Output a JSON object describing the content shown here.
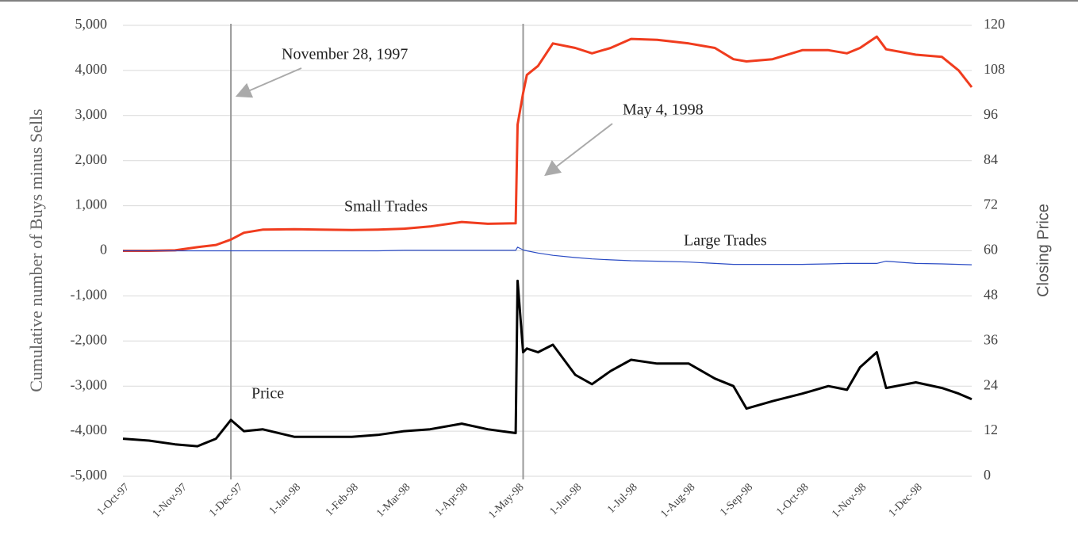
{
  "chart_data": {
    "type": "line",
    "ylabel": "Cumulative  number of  Buys minus Sells",
    "y2label": "Closing Price",
    "x": [
      "1997-10-01",
      "1997-10-15",
      "1997-10-29",
      "1997-11-10",
      "1997-11-20",
      "1997-11-28",
      "1997-12-05",
      "1997-12-15",
      "1998-01-01",
      "1998-01-15",
      "1998-02-01",
      "1998-02-15",
      "1998-03-01",
      "1998-03-15",
      "1998-04-01",
      "1998-04-15",
      "1998-04-30",
      "1998-05-01",
      "1998-05-04",
      "1998-05-06",
      "1998-05-12",
      "1998-05-20",
      "1998-06-01",
      "1998-06-10",
      "1998-06-20",
      "1998-07-01",
      "1998-07-15",
      "1998-08-01",
      "1998-08-15",
      "1998-08-25",
      "1998-09-01",
      "1998-09-15",
      "1998-10-01",
      "1998-10-15",
      "1998-10-25",
      "1998-11-01",
      "1998-11-10",
      "1998-11-15",
      "1998-12-01",
      "1998-12-15",
      "1998-12-24",
      "1998-12-31"
    ],
    "series": [
      {
        "name": "Small Trades",
        "color": "#f03c1e",
        "axis": "y",
        "values": [
          0,
          0,
          10,
          80,
          130,
          250,
          400,
          470,
          480,
          470,
          460,
          470,
          490,
          540,
          640,
          600,
          610,
          2800,
          3500,
          3900,
          4100,
          4600,
          4500,
          4380,
          4500,
          4700,
          4680,
          4600,
          4500,
          4250,
          4200,
          4250,
          4450,
          4450,
          4380,
          4500,
          4750,
          4470,
          4350,
          4300,
          4000,
          3630
        ]
      },
      {
        "name": "Large Trades",
        "color": "#2a4bc4",
        "axis": "y",
        "values": [
          0,
          0,
          0,
          0,
          0,
          0,
          0,
          0,
          0,
          0,
          0,
          0,
          10,
          10,
          10,
          10,
          10,
          80,
          20,
          0,
          -50,
          -100,
          -150,
          -180,
          -200,
          -220,
          -230,
          -250,
          -280,
          -300,
          -300,
          -300,
          -300,
          -290,
          -280,
          -280,
          -280,
          -230,
          -280,
          -290,
          -300,
          -310
        ]
      },
      {
        "name": "Price",
        "color": "#000000",
        "axis": "y2",
        "values": [
          10,
          9.5,
          8.5,
          8,
          10,
          15,
          12,
          12.5,
          10.5,
          10.5,
          10.5,
          11,
          12,
          12.5,
          14,
          12.5,
          11.5,
          52,
          33,
          34,
          33,
          35,
          27,
          24.5,
          28,
          31,
          30,
          30,
          26,
          24,
          18,
          20,
          22,
          24,
          23,
          29,
          33,
          23.5,
          25,
          23.5,
          22,
          20.5
        ]
      }
    ],
    "xlim": [
      "1997-10-01",
      "1998-12-31"
    ],
    "xticks": [
      {
        "value": "1997-10-01",
        "label": "1-Oct-97"
      },
      {
        "value": "1997-11-01",
        "label": "1-Nov-97"
      },
      {
        "value": "1997-12-01",
        "label": "1-Dec-97"
      },
      {
        "value": "1998-01-01",
        "label": "1-Jan-98"
      },
      {
        "value": "1998-02-01",
        "label": "1-Feb-98"
      },
      {
        "value": "1998-03-01",
        "label": "1-Mar-98"
      },
      {
        "value": "1998-04-01",
        "label": "1-Apr-98"
      },
      {
        "value": "1998-05-01",
        "label": "1-May-98"
      },
      {
        "value": "1998-06-01",
        "label": "1-Jun-98"
      },
      {
        "value": "1998-07-01",
        "label": "1-Jul-98"
      },
      {
        "value": "1998-08-01",
        "label": "1-Aug-98"
      },
      {
        "value": "1998-09-01",
        "label": "1-Sep-98"
      },
      {
        "value": "1998-10-01",
        "label": "1-Oct-98"
      },
      {
        "value": "1998-11-01",
        "label": "1-Nov-98"
      },
      {
        "value": "1998-12-01",
        "label": "1-Dec-98"
      }
    ],
    "ylim": [
      -5000,
      5000
    ],
    "yticks": [
      {
        "value": -5000,
        "label": "-5,000"
      },
      {
        "value": -4000,
        "label": "-4,000"
      },
      {
        "value": -3000,
        "label": "-3,000"
      },
      {
        "value": -2000,
        "label": "-2,000"
      },
      {
        "value": -1000,
        "label": "-1,000"
      },
      0,
      {
        "value": 1000,
        "label": "1,000"
      },
      {
        "value": 2000,
        "label": "2,000"
      },
      {
        "value": 3000,
        "label": "3,000"
      },
      {
        "value": 4000,
        "label": "4,000"
      },
      {
        "value": 5000,
        "label": "5,000"
      }
    ],
    "y2lim": [
      0,
      120
    ],
    "y2ticks": [
      0,
      12,
      24,
      36,
      48,
      60,
      72,
      84,
      96,
      108,
      120
    ],
    "grid": true,
    "events": [
      {
        "text": "November 28, 1997",
        "x": "1997-11-28"
      },
      {
        "text": "May 4, 1998",
        "x": "1998-05-04"
      }
    ]
  }
}
